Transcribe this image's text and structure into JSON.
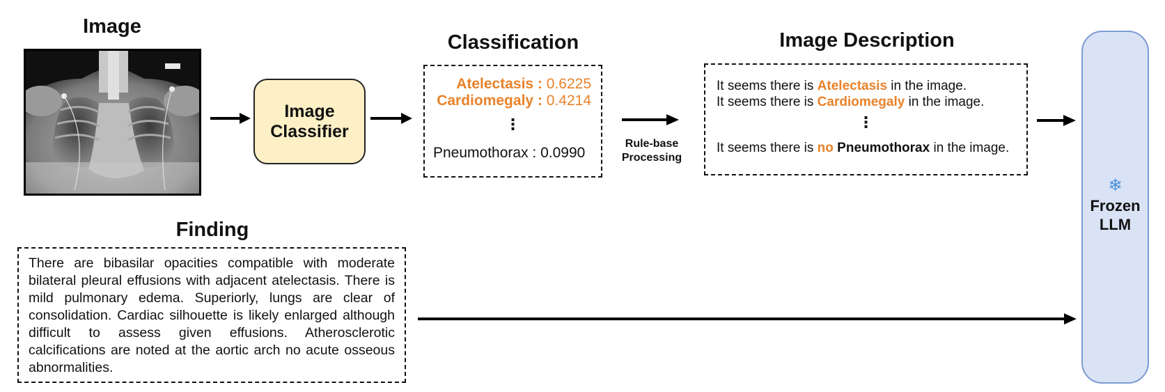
{
  "titles": {
    "image": "Image",
    "classification": "Classification",
    "image_description": "Image Description",
    "finding": "Finding"
  },
  "classifier": {
    "line1": "Image",
    "line2": "Classifier"
  },
  "classification": {
    "items": [
      {
        "label": "Atelectasis :",
        "value": "0.6225"
      },
      {
        "label": "Cardiomegaly :",
        "value": "0.4214"
      },
      {
        "label": "Pneumothorax :",
        "value": "0.0990"
      }
    ],
    "ellipsis": "⋮"
  },
  "rule_processing": {
    "line1": "Rule-base",
    "line2": "Processing"
  },
  "description": {
    "line1": {
      "prefix": "It seems there is ",
      "highlight": "Atelectasis",
      "suffix": " in the image."
    },
    "line2": {
      "prefix": "It seems there is ",
      "highlight": "Cardiomegaly",
      "suffix": " in the image."
    },
    "ellipsis": "⋮",
    "line3": {
      "prefix": "It seems there is ",
      "negation": "no",
      "finding": "Pneumothorax",
      "suffix": " in the image."
    }
  },
  "finding_text": "There are bibasilar opacities compatible with moderate bilateral pleural effusions with adjacent atelectasis. There is mild pulmonary edema. Superiorly, lungs are clear of consolidation. Cardiac silhouette is likely enlarged although difficult to assess given effusions. Atherosclerotic calcifications are noted at the aortic arch no acute osseous abnormalities.",
  "llm": {
    "icon": "snowflake-icon",
    "icon_glyph": "❄",
    "line1": "Frozen",
    "line2": "LLM"
  },
  "colors": {
    "highlight": "#E8822A",
    "classifier_fill": "#FDF0C6",
    "llm_fill": "#D9E3F5",
    "llm_border": "#7D9BD3",
    "snowflake": "#4A90D9"
  }
}
